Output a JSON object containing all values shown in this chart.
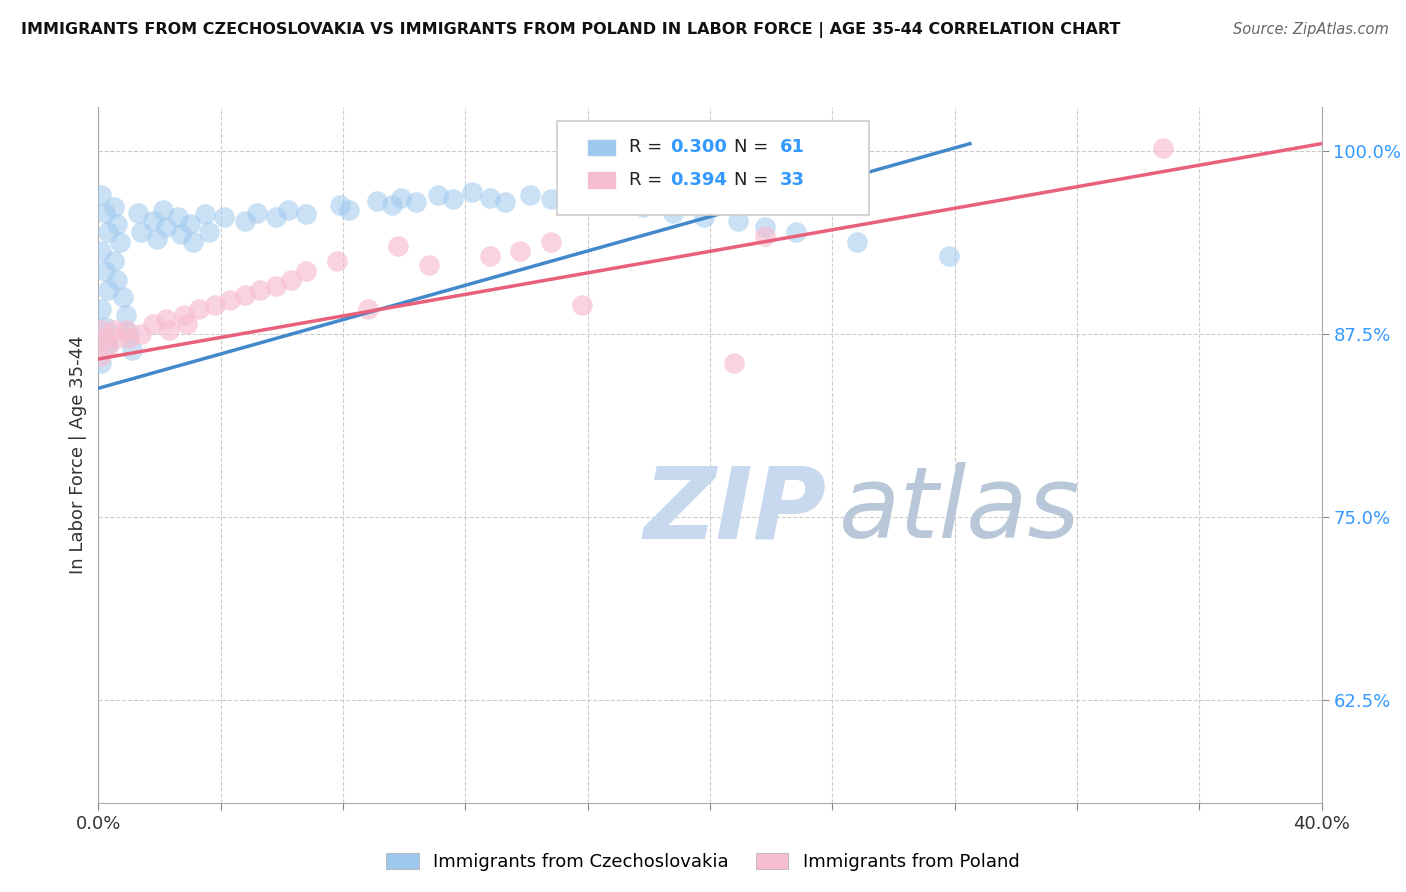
{
  "title": "IMMIGRANTS FROM CZECHOSLOVAKIA VS IMMIGRANTS FROM POLAND IN LABOR FORCE | AGE 35-44 CORRELATION CHART",
  "source": "Source: ZipAtlas.com",
  "ylabel": "In Labor Force | Age 35-44",
  "xlim": [
    0.0,
    0.4
  ],
  "ylim": [
    0.555,
    1.03
  ],
  "yticks": [
    0.625,
    0.75,
    0.875,
    1.0
  ],
  "ytick_labels": [
    "62.5%",
    "75.0%",
    "87.5%",
    "100.0%"
  ],
  "xticks": [
    0.0,
    0.04,
    0.08,
    0.12,
    0.16,
    0.2,
    0.24,
    0.28,
    0.32,
    0.36,
    0.4
  ],
  "R_czech": 0.3,
  "N_czech": 61,
  "R_poland": 0.394,
  "N_poland": 33,
  "blue_scatter_color": "#9EC8EE",
  "pink_scatter_color": "#F7BDD0",
  "blue_line_color": "#4488CC",
  "pink_line_color": "#E8607A",
  "ytick_color": "#3399FF",
  "background_color": "#FFFFFF",
  "grid_color": "#CCCCCC",
  "watermark_color": "#C8D8EE",
  "czech_x": [
    0.001,
    0.002,
    0.003,
    0.001,
    0.002,
    0.003,
    0.001,
    0.002,
    0.003,
    0.001,
    0.005,
    0.006,
    0.007,
    0.005,
    0.006,
    0.008,
    0.009,
    0.01,
    0.011,
    0.013,
    0.014,
    0.018,
    0.019,
    0.021,
    0.022,
    0.026,
    0.027,
    0.03,
    0.031,
    0.035,
    0.036,
    0.041,
    0.048,
    0.052,
    0.058,
    0.062,
    0.068,
    0.079,
    0.082,
    0.091,
    0.096,
    0.099,
    0.104,
    0.111,
    0.116,
    0.122,
    0.128,
    0.133,
    0.141,
    0.148,
    0.153,
    0.158,
    0.168,
    0.178,
    0.188,
    0.198,
    0.209,
    0.218,
    0.228,
    0.248,
    0.278
  ],
  "czech_y": [
    0.97,
    0.958,
    0.945,
    0.932,
    0.918,
    0.905,
    0.892,
    0.88,
    0.868,
    0.855,
    0.962,
    0.95,
    0.938,
    0.925,
    0.912,
    0.9,
    0.888,
    0.876,
    0.864,
    0.958,
    0.945,
    0.952,
    0.94,
    0.96,
    0.948,
    0.955,
    0.943,
    0.95,
    0.938,
    0.957,
    0.945,
    0.955,
    0.952,
    0.958,
    0.955,
    0.96,
    0.957,
    0.963,
    0.96,
    0.966,
    0.963,
    0.968,
    0.965,
    0.97,
    0.967,
    0.972,
    0.968,
    0.965,
    0.97,
    0.967,
    0.972,
    0.968,
    0.965,
    0.962,
    0.958,
    0.955,
    0.952,
    0.948,
    0.945,
    0.938,
    0.928
  ],
  "poland_x": [
    0.001,
    0.002,
    0.003,
    0.001,
    0.005,
    0.006,
    0.009,
    0.01,
    0.014,
    0.018,
    0.022,
    0.023,
    0.028,
    0.029,
    0.033,
    0.038,
    0.043,
    0.048,
    0.053,
    0.058,
    0.063,
    0.068,
    0.078,
    0.088,
    0.098,
    0.108,
    0.128,
    0.138,
    0.148,
    0.158,
    0.208,
    0.218,
    0.348
  ],
  "poland_y": [
    0.878,
    0.872,
    0.866,
    0.86,
    0.878,
    0.872,
    0.878,
    0.872,
    0.875,
    0.882,
    0.885,
    0.878,
    0.888,
    0.882,
    0.892,
    0.895,
    0.898,
    0.902,
    0.905,
    0.908,
    0.912,
    0.918,
    0.925,
    0.892,
    0.935,
    0.922,
    0.928,
    0.932,
    0.938,
    0.895,
    0.855,
    0.942,
    1.002
  ],
  "blue_line_x": [
    0.0,
    0.285
  ],
  "blue_line_y": [
    0.838,
    1.005
  ],
  "pink_line_x": [
    0.0,
    0.4
  ],
  "pink_line_y": [
    0.858,
    1.005
  ]
}
